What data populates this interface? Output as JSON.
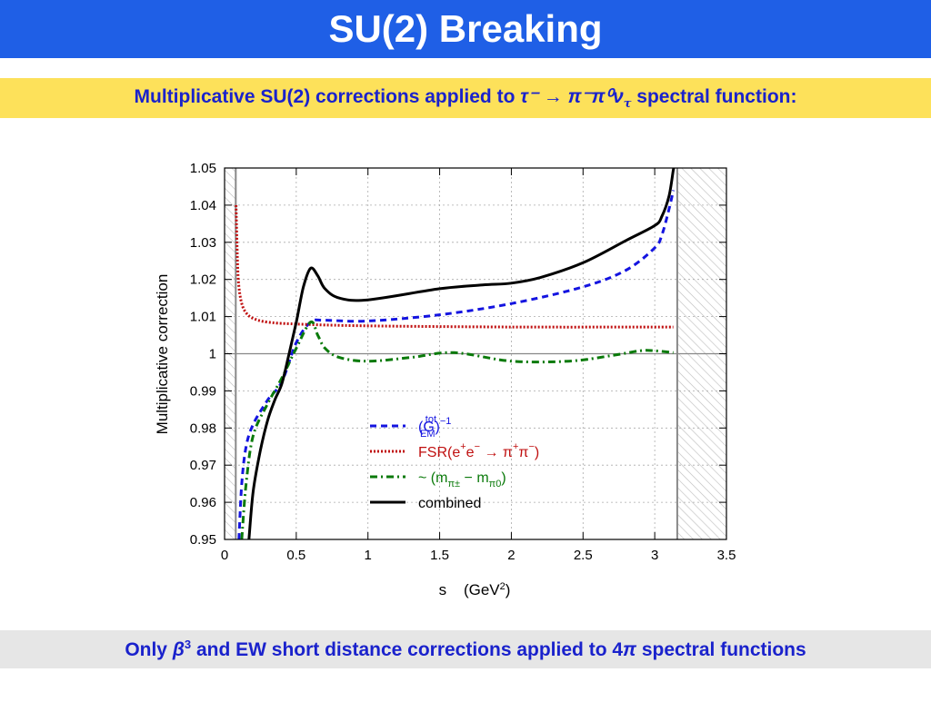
{
  "slide": {
    "title": "SU(2) Breaking",
    "subtitle": {
      "prefix": "Multiplicative SU(2) corrections applied to ",
      "formula": "τ⁻ → π⁻π⁰ν",
      "formula_sub": "τ",
      "suffix": " spectral function:"
    },
    "footer": {
      "prefix": "Only ",
      "beta": "β",
      "beta_power": "3",
      "middle": " and EW short distance corrections applied to 4",
      "pi": "π",
      "suffix": " spectral functions"
    }
  },
  "colors": {
    "title_bg": "#1f5fe6",
    "subtitle_bg": "#fde15a",
    "footer_bg": "#e6e6e6",
    "text_blue": "#1a22cc"
  },
  "chart_data": {
    "type": "line",
    "xlabel": "s    (GeV²)",
    "ylabel": "Multiplicative correction",
    "xlim": [
      0,
      3.5
    ],
    "ylim": [
      0.95,
      1.05
    ],
    "x_ticks": [
      "0",
      "0.5",
      "1",
      "1.5",
      "2",
      "2.5",
      "3",
      "3.5"
    ],
    "y_ticks": [
      "0.95",
      "0.96",
      "0.97",
      "0.98",
      "0.99",
      "1",
      "1.01",
      "1.02",
      "1.03",
      "1.04",
      "1.05"
    ],
    "grid": true,
    "reference_line": 1.0,
    "excluded_regions": [
      [
        0,
        0.078
      ],
      [
        3.157,
        3.5
      ]
    ],
    "legend_position": "lower-right",
    "series": [
      {
        "name": "(G_EM^tot)^-1",
        "label": {
          "base": "(G",
          "sup": "tot",
          "sub": "EM",
          "close": ")",
          "exp": "−1"
        },
        "color": "#1414e0",
        "style": "dashed",
        "points": [
          [
            0.1,
            0.95
          ],
          [
            0.12,
            0.965
          ],
          [
            0.15,
            0.975
          ],
          [
            0.2,
            0.981
          ],
          [
            0.3,
            0.9875
          ],
          [
            0.4,
            0.9925
          ],
          [
            0.5,
            1.003
          ],
          [
            0.6,
            1.0085
          ],
          [
            0.7,
            1.009
          ],
          [
            1.0,
            1.0088
          ],
          [
            1.5,
            1.0105
          ],
          [
            2.0,
            1.0135
          ],
          [
            2.5,
            1.018
          ],
          [
            2.8,
            1.0225
          ],
          [
            3.0,
            1.0285
          ],
          [
            3.05,
            1.032
          ],
          [
            3.1,
            1.039
          ],
          [
            3.13,
            1.044
          ]
        ]
      },
      {
        "name": "FSR(e+e- → π+π-)",
        "label": {
          "text1": "FSR(e",
          "sup1": "+",
          "text2": "e",
          "sup2": "−",
          "arrow": " → π",
          "sup3": "+",
          "text3": "π",
          "sup4": "−",
          "close": ")"
        },
        "color": "#c01010",
        "style": "dotted",
        "points": [
          [
            0.08,
            1.04
          ],
          [
            0.09,
            1.025
          ],
          [
            0.1,
            1.018
          ],
          [
            0.12,
            1.0135
          ],
          [
            0.15,
            1.011
          ],
          [
            0.2,
            1.0095
          ],
          [
            0.3,
            1.0085
          ],
          [
            0.5,
            1.008
          ],
          [
            1.0,
            1.0075
          ],
          [
            2.0,
            1.0072
          ],
          [
            3.13,
            1.0072
          ]
        ]
      },
      {
        "name": "~ (m_π± − m_π0)",
        "label": {
          "tilde": "~ (m",
          "sub1": "π±",
          "minus": " − m",
          "sub2": "π0",
          "close": ")"
        },
        "color": "#0a7a0a",
        "style": "dashdot",
        "points": [
          [
            0.12,
            0.95
          ],
          [
            0.15,
            0.965
          ],
          [
            0.2,
            0.978
          ],
          [
            0.3,
            0.9865
          ],
          [
            0.4,
            0.9935
          ],
          [
            0.5,
            1.0015
          ],
          [
            0.6,
            1.0085
          ],
          [
            0.65,
            1.005
          ],
          [
            0.7,
            1.0015
          ],
          [
            0.8,
            0.999
          ],
          [
            1.0,
            0.998
          ],
          [
            1.3,
            0.999
          ],
          [
            1.6,
            1.0003
          ],
          [
            2.0,
            0.998
          ],
          [
            2.4,
            0.998
          ],
          [
            2.7,
            0.9995
          ],
          [
            2.9,
            1.0008
          ],
          [
            3.0,
            1.0008
          ],
          [
            3.13,
            1.0003
          ]
        ]
      },
      {
        "name": "combined",
        "label": {
          "text": "combined"
        },
        "color": "#000000",
        "style": "solid",
        "points": [
          [
            0.17,
            0.95
          ],
          [
            0.2,
            0.963
          ],
          [
            0.25,
            0.974
          ],
          [
            0.3,
            0.982
          ],
          [
            0.35,
            0.9875
          ],
          [
            0.4,
            0.992
          ],
          [
            0.45,
            1.0
          ],
          [
            0.5,
            1.0085
          ],
          [
            0.55,
            1.018
          ],
          [
            0.6,
            1.023
          ],
          [
            0.65,
            1.021
          ],
          [
            0.7,
            1.0175
          ],
          [
            0.8,
            1.015
          ],
          [
            1.0,
            1.0145
          ],
          [
            1.5,
            1.0175
          ],
          [
            1.8,
            1.0185
          ],
          [
            2.0,
            1.019
          ],
          [
            2.2,
            1.0205
          ],
          [
            2.5,
            1.0245
          ],
          [
            2.8,
            1.0305
          ],
          [
            3.0,
            1.0345
          ],
          [
            3.05,
            1.037
          ],
          [
            3.1,
            1.0425
          ],
          [
            3.13,
            1.0495
          ],
          [
            3.14,
            1.0505
          ]
        ]
      }
    ]
  }
}
